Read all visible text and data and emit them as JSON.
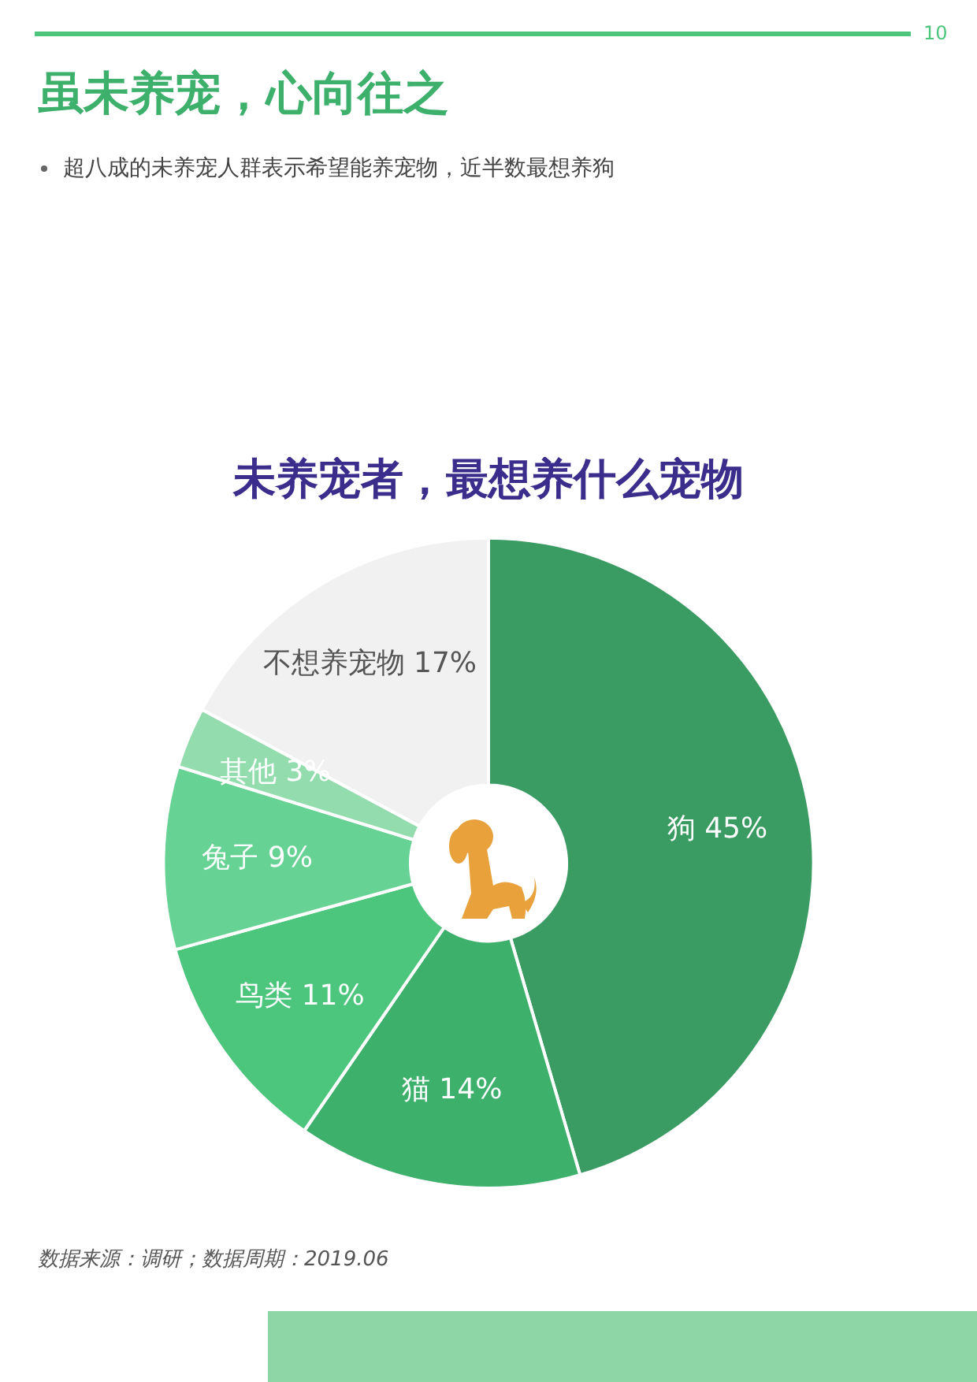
{
  "chart_data": {
    "type": "donut",
    "title": "未养宠者，最想养什么宠物",
    "categories": [
      "狗",
      "猫",
      "鸟类",
      "兔子",
      "其他",
      "不想养宠物"
    ],
    "values": [
      45,
      14,
      11,
      9,
      3,
      17
    ],
    "colors": [
      "#3a9b63",
      "#3db06c",
      "#4cc67c",
      "#66d294",
      "#93dcae",
      "#f1f1f1"
    ],
    "value_labels": [
      "45%",
      "14%",
      "11%",
      "9%",
      "3%",
      "17%"
    ],
    "legend": false,
    "annotations": [
      "10",
      "虽未养宠，心向往之",
      "超八成的未养宠人群表示希望能养宠物，近半数最想养狗",
      "数据来源：调研；数据周期：2019.06"
    ]
  }
}
